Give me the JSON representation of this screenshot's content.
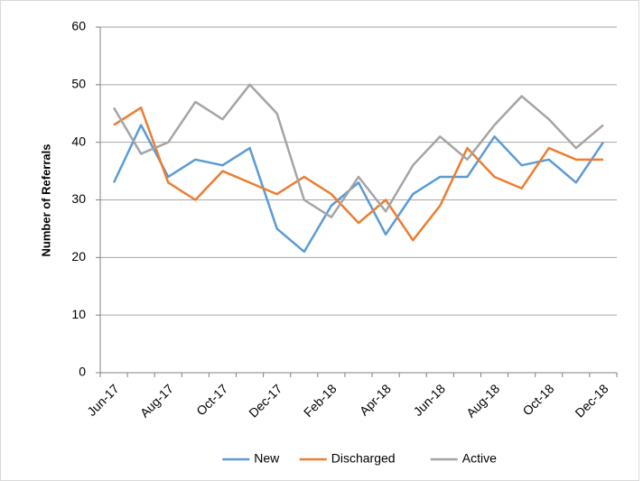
{
  "chart_data": {
    "type": "line",
    "y_label": "Number of Referrals",
    "categories": [
      "Jun-17",
      null,
      "Aug-17",
      null,
      "Oct-17",
      null,
      "Dec-17",
      null,
      "Feb-18",
      null,
      "Apr-18",
      null,
      "Jun-18",
      null,
      "Aug-18",
      null,
      "Oct-18",
      null,
      "Dec-18"
    ],
    "series": [
      {
        "name": "New",
        "color": "#5b9bd5",
        "values": [
          33,
          43,
          34,
          37,
          36,
          39,
          25,
          21,
          29,
          33,
          24,
          31,
          34,
          34,
          41,
          36,
          37,
          33,
          40
        ]
      },
      {
        "name": "Discharged",
        "color": "#ed7d31",
        "values": [
          43,
          46,
          33,
          30,
          35,
          33,
          31,
          34,
          31,
          26,
          30,
          23,
          29,
          39,
          34,
          32,
          39,
          37,
          37
        ]
      },
      {
        "name": "Active",
        "color": "#a5a5a5",
        "values": [
          46,
          38,
          40,
          47,
          44,
          50,
          45,
          30,
          27,
          34,
          28,
          36,
          41,
          37,
          43,
          48,
          44,
          39,
          43
        ]
      }
    ],
    "ylim": [
      0,
      60
    ],
    "yticks": [
      0,
      10,
      20,
      30,
      40,
      50,
      60
    ],
    "grid": true,
    "legend": "bottom"
  }
}
